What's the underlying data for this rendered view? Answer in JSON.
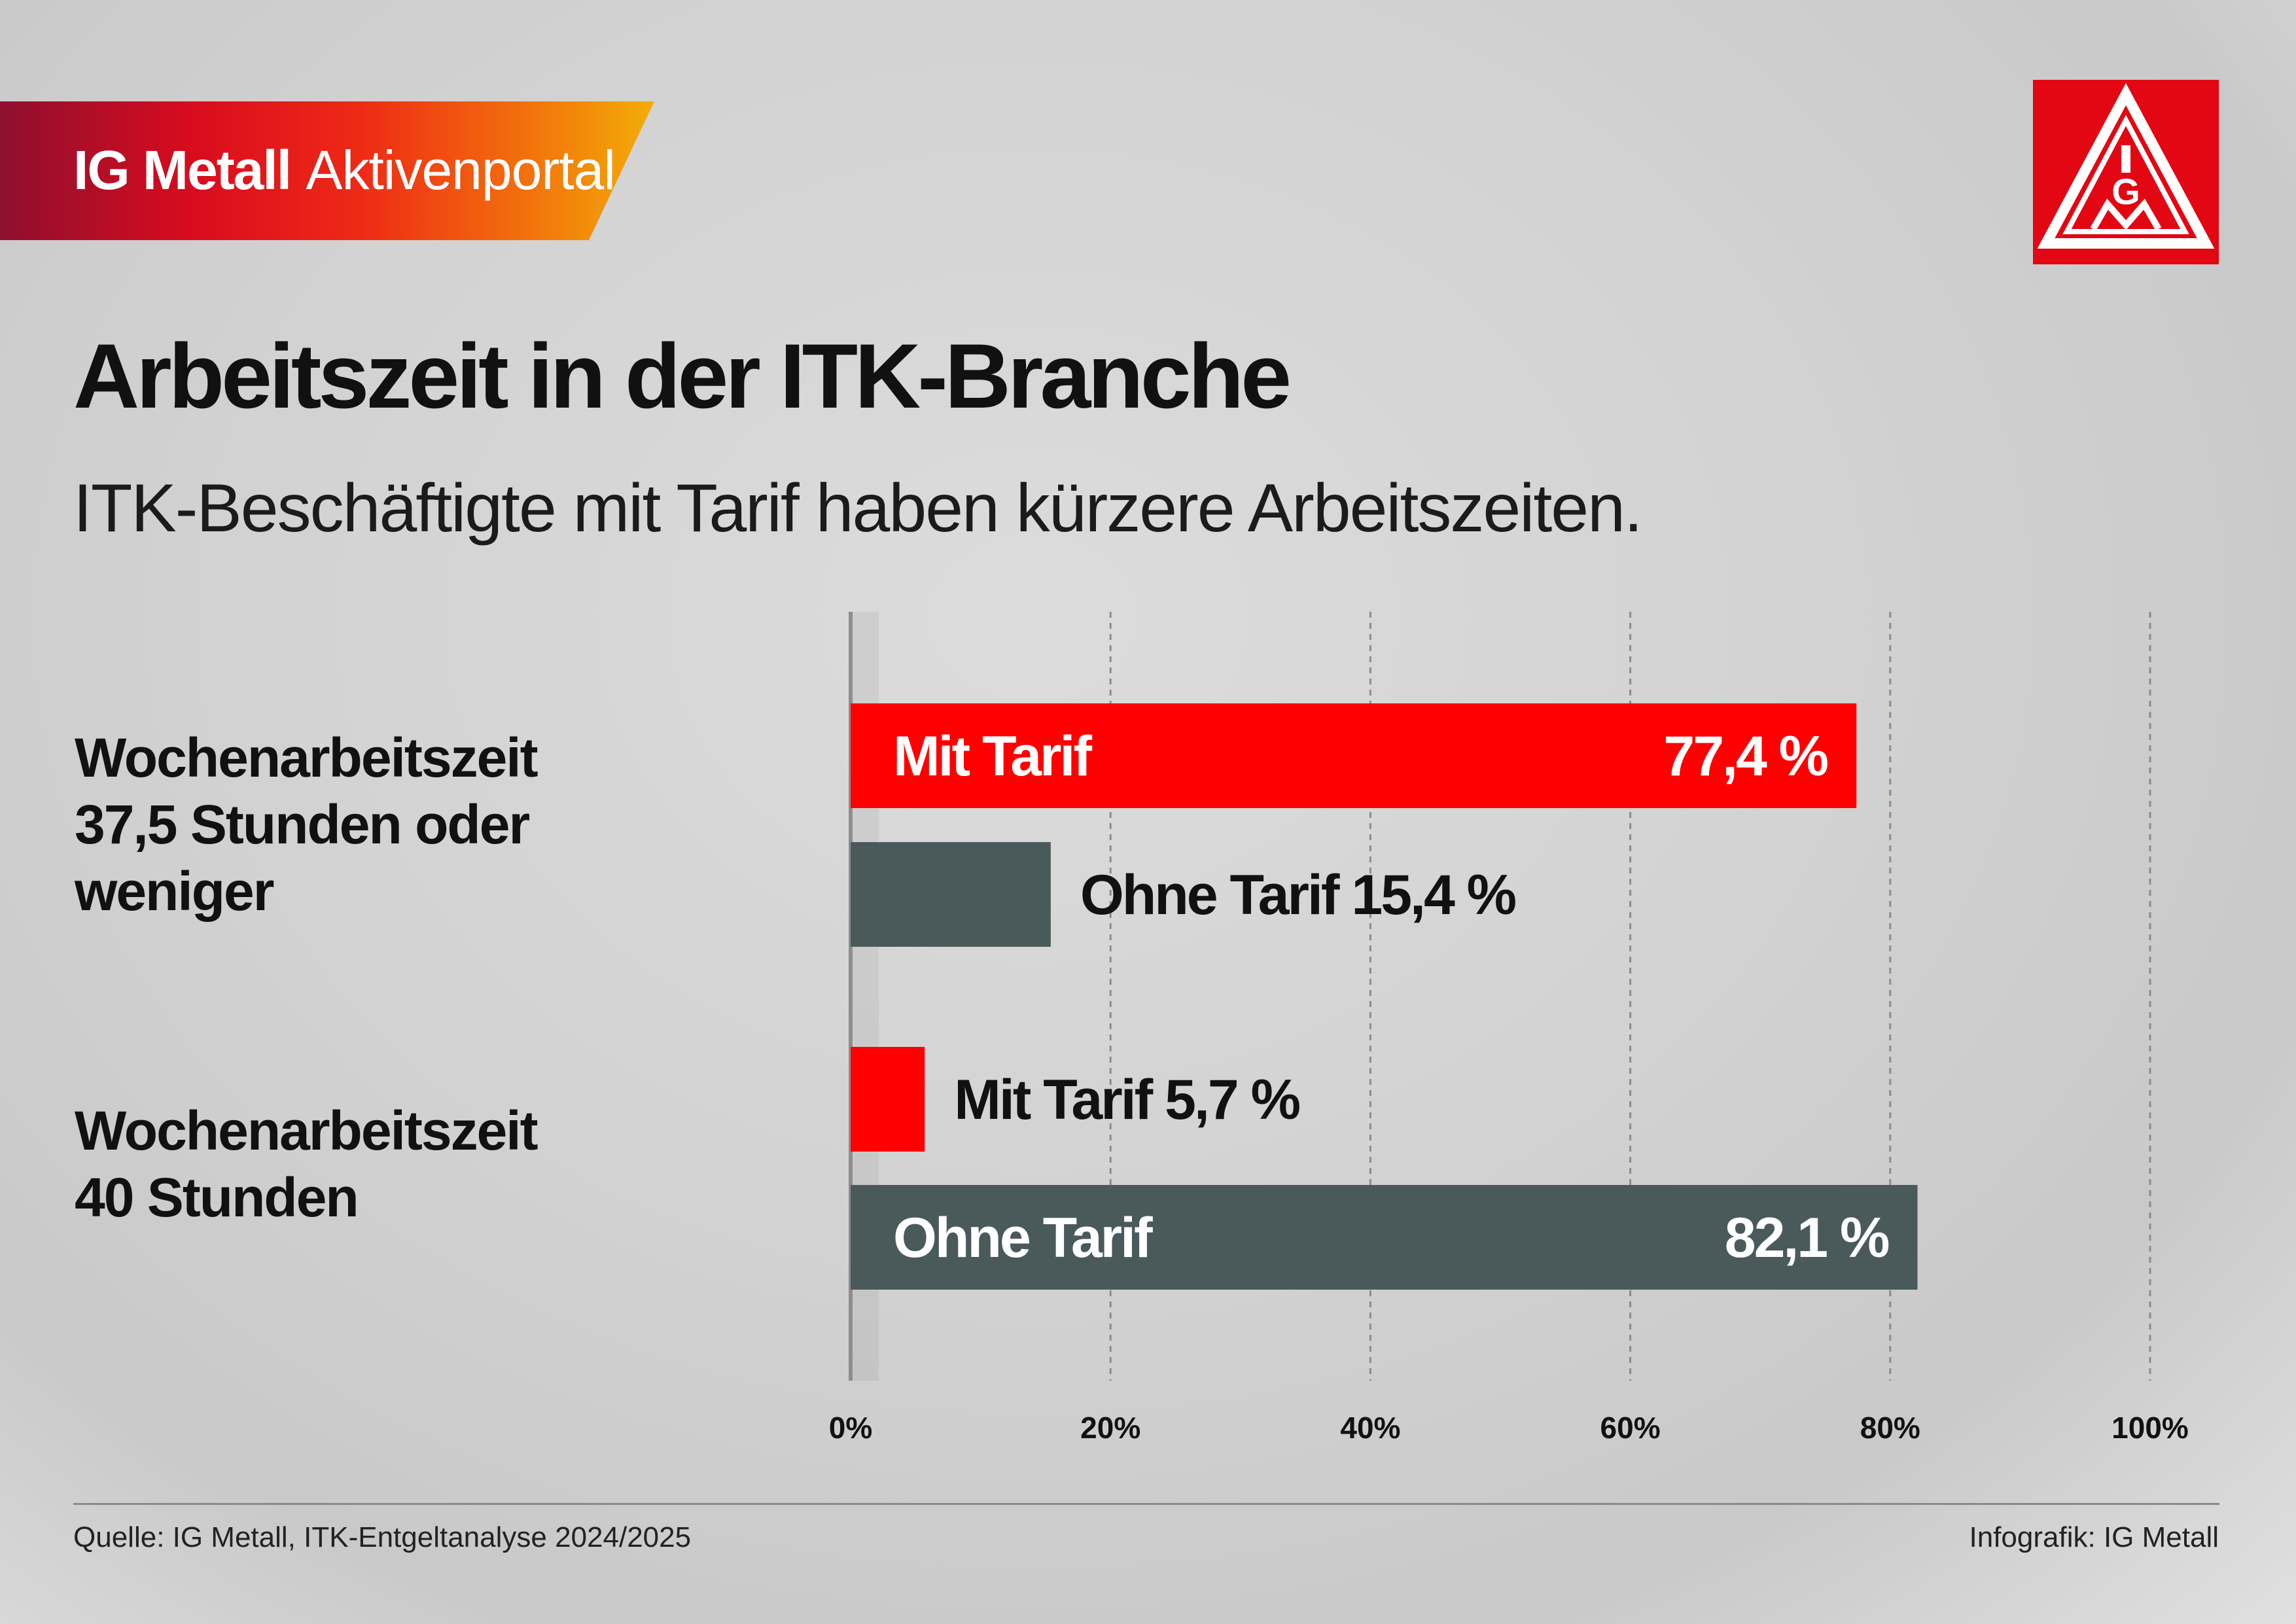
{
  "banner": {
    "brand": "IG Metall",
    "portal": "Aktivenportal"
  },
  "logo": {
    "letters": "IGM",
    "color": "#e30613"
  },
  "title": "Arbeitszeit in der ITK-Branche",
  "subtitle": "ITK-Beschäftigte mit Tarif haben kürzere Arbeitszeiten.",
  "groups": [
    {
      "lines": [
        "Wochenarbeitszeit",
        "37,5 Stunden oder",
        "weniger"
      ]
    },
    {
      "lines": [
        "Wochenarbeitszeit",
        "40 Stunden"
      ]
    }
  ],
  "chart_data": {
    "type": "bar",
    "orientation": "horizontal",
    "title": "Arbeitszeit in der ITK-Branche",
    "subtitle": "ITK-Beschäftigte mit Tarif haben kürzere Arbeitszeiten.",
    "categories": [
      "Wochenarbeitszeit 37,5 Stunden oder weniger",
      "Wochenarbeitszeit 40 Stunden"
    ],
    "series": [
      {
        "name": "Mit Tarif",
        "values": [
          77.4,
          5.7
        ],
        "labels": [
          "77,4 %",
          "5,7 %"
        ],
        "color": "#ff0000"
      },
      {
        "name": "Ohne Tarif",
        "values": [
          15.4,
          82.1
        ],
        "labels": [
          "15,4 %",
          "82,1 %"
        ],
        "color": "#4a5a5b"
      }
    ],
    "xlim": [
      0,
      100
    ],
    "ticks": [
      0,
      20,
      40,
      60,
      80,
      100
    ],
    "tick_labels": [
      "0%",
      "20%",
      "40%",
      "60%",
      "80%",
      "100%"
    ],
    "grid": true,
    "grid_style": "dashed",
    "legend": "none"
  },
  "footer": {
    "source": "Quelle: IG Metall, ITK-Entgeltanalyse 2024/2025",
    "credit": "Infografik: IG Metall"
  }
}
